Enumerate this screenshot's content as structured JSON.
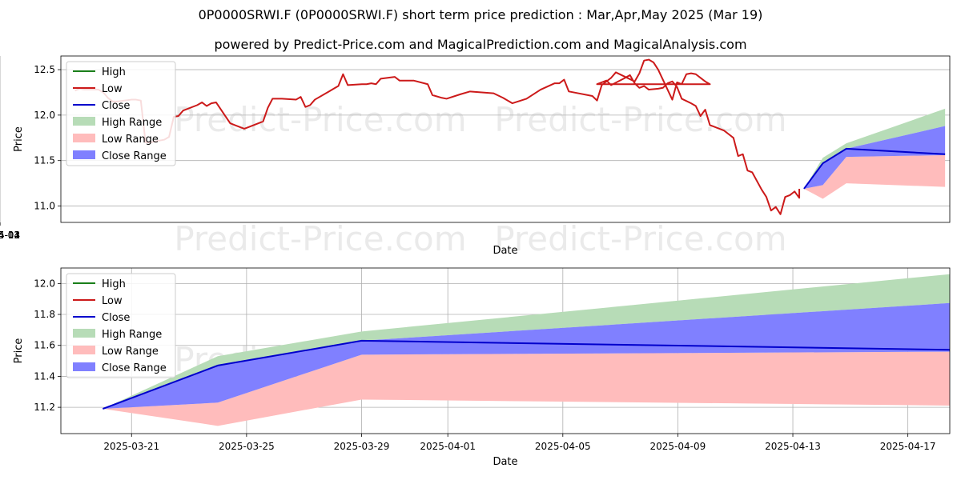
{
  "title": "0P0000SRWI.F (0P0000SRWI.F) short term price prediction : Mar,Apr,May 2025 (Mar 19)",
  "subtitle": "powered by Predict-Price.com and MagicalPrediction.com and MagicalAnalysis.com",
  "watermark": "Predict-Price.com",
  "colors": {
    "high": "#1a7f1a",
    "low": "#cc1a1a",
    "close": "#0000cc",
    "high_range": "#b7dcb7",
    "low_range": "#ffbcbc",
    "close_range": "#8080ff"
  },
  "chart_data": [
    {
      "type": "line",
      "xlabel": "Date",
      "ylabel": "Price",
      "ylim": [
        10.82,
        12.65
      ],
      "xlim": [
        "2024-10-13",
        "2025-04-20"
      ],
      "y_ticks": [
        "11.0",
        "11.5",
        "12.0",
        "12.5"
      ],
      "x_ticks": [
        "2024-11",
        "2024-12",
        "2025-01",
        "2025-02",
        "2025-03",
        "2025-04"
      ],
      "legend": [
        "High",
        "Low",
        "Close",
        "High Range",
        "Low Range",
        "Close Range"
      ],
      "legend_position": "top-left",
      "grid": true,
      "history": {
        "name": "Low",
        "points": [
          [
            "2024-10-16",
            12.27
          ],
          [
            "2024-10-17",
            12.29
          ],
          [
            "2024-10-18",
            12.28
          ],
          [
            "2024-10-21",
            12.28
          ],
          [
            "2024-10-22",
            12.25
          ],
          [
            "2024-10-23",
            12.19
          ],
          [
            "2024-10-24",
            12.15
          ],
          [
            "2024-10-25",
            12.15
          ],
          [
            "2024-10-28",
            12.17
          ],
          [
            "2024-10-29",
            12.17
          ],
          [
            "2024-10-30",
            12.16
          ],
          [
            "2024-10-31",
            11.7
          ],
          [
            "2024-11-01",
            11.7
          ],
          [
            "2024-11-04",
            11.73
          ],
          [
            "2024-11-05",
            11.76
          ],
          [
            "2024-11-06",
            11.98
          ],
          [
            "2024-11-07",
            11.99
          ],
          [
            "2024-11-08",
            12.05
          ],
          [
            "2024-11-11",
            12.11
          ],
          [
            "2024-11-12",
            12.14
          ],
          [
            "2024-11-13",
            12.1
          ],
          [
            "2024-11-14",
            12.13
          ],
          [
            "2024-11-15",
            12.14
          ],
          [
            "2024-11-18",
            11.91
          ],
          [
            "2024-11-19",
            11.89
          ],
          [
            "2024-11-20",
            11.87
          ],
          [
            "2024-11-21",
            11.85
          ],
          [
            "2024-11-22",
            11.87
          ],
          [
            "2024-11-25",
            11.93
          ],
          [
            "2024-11-26",
            12.08
          ],
          [
            "2024-11-27",
            12.18
          ],
          [
            "2024-11-28",
            12.18
          ],
          [
            "2024-11-29",
            12.18
          ],
          [
            "2024-12-02",
            12.17
          ],
          [
            "2024-12-03",
            12.2
          ],
          [
            "2024-12-04",
            12.09
          ],
          [
            "2024-12-05",
            12.11
          ],
          [
            "2024-12-06",
            12.17
          ],
          [
            "2024-12-09",
            12.26
          ],
          [
            "2024-12-10",
            12.29
          ],
          [
            "2024-12-11",
            12.32
          ],
          [
            "2024-12-12",
            12.45
          ],
          [
            "2024-12-13",
            12.33
          ],
          [
            "2024-12-16",
            12.34
          ],
          [
            "2024-12-17",
            12.34
          ],
          [
            "2024-12-18",
            12.35
          ],
          [
            "2024-12-19",
            12.34
          ],
          [
            "2024-12-20",
            12.4
          ],
          [
            "2024-12-23",
            12.42
          ],
          [
            "2024-12-24",
            12.38
          ],
          [
            "2024-12-27",
            12.38
          ],
          [
            "2024-12-30",
            12.34
          ],
          [
            "2024-12-31",
            12.22
          ],
          [
            "2025-01-02",
            12.19
          ],
          [
            "2025-01-03",
            12.18
          ],
          [
            "2025-01-06",
            12.23
          ],
          [
            "2025-01-08",
            12.26
          ],
          [
            "2025-01-13",
            12.24
          ],
          [
            "2025-01-15",
            12.19
          ],
          [
            "2025-01-17",
            12.13
          ],
          [
            "2025-01-20",
            12.18
          ],
          [
            "2025-01-23",
            12.28
          ],
          [
            "2025-01-26",
            12.35
          ],
          [
            "2025-01-27",
            12.35
          ],
          [
            "2025-01-28",
            12.39
          ],
          [
            "2025-01-29",
            12.26
          ],
          [
            "2025-02-03",
            12.21
          ],
          [
            "2025-02-04",
            12.16
          ],
          [
            "2025-02-05",
            12.33
          ],
          [
            "2025-02-07",
            12.41
          ],
          [
            "2025-02-08",
            12.47
          ],
          [
            "2025-02-12",
            12.37
          ],
          [
            "2025-02-13",
            12.46
          ],
          [
            "2025-02-14",
            12.6
          ],
          [
            "2025-02-15",
            12.61
          ],
          [
            "2025-02-16",
            12.58
          ],
          [
            "2025-02-17",
            12.5
          ],
          [
            "2025-02-18",
            12.39
          ],
          [
            "2025-02-19",
            12.28
          ],
          [
            "2025-02-20",
            12.17
          ],
          [
            "2025-02-21",
            12.36
          ],
          [
            "2025-02-22",
            12.34
          ],
          [
            "2025-02-23",
            12.45
          ],
          [
            "2025-02-24",
            12.46
          ],
          [
            "2025-02-25",
            12.45
          ],
          [
            "2025-02-26",
            12.41
          ],
          [
            "2025-02-27",
            12.37
          ],
          [
            "2025-02-28",
            12.34
          ],
          [
            "2025-02-04",
            12.34
          ],
          [
            "2025-02-05",
            12.36
          ],
          [
            "2025-02-06",
            12.38
          ],
          [
            "2025-02-07",
            12.33
          ],
          [
            "2025-02-10",
            12.41
          ],
          [
            "2025-02-11",
            12.44
          ],
          [
            "2025-02-12",
            12.35
          ],
          [
            "2025-02-13",
            12.3
          ],
          [
            "2025-02-14",
            12.32
          ],
          [
            "2025-02-15",
            12.28
          ],
          [
            "2025-02-17",
            12.29
          ],
          [
            "2025-02-18",
            12.3
          ],
          [
            "2025-02-19",
            12.35
          ],
          [
            "2025-02-20",
            12.37
          ],
          [
            "2025-02-21",
            12.31
          ],
          [
            "2025-02-22",
            12.18
          ],
          [
            "2025-02-24",
            12.13
          ],
          [
            "2025-02-25",
            12.1
          ],
          [
            "2025-02-26",
            11.99
          ],
          [
            "2025-02-27",
            12.06
          ],
          [
            "2025-02-28",
            11.89
          ],
          [
            "2025-03-03",
            11.83
          ],
          [
            "2025-03-04",
            11.79
          ],
          [
            "2025-03-05",
            11.75
          ],
          [
            "2025-03-06",
            11.55
          ],
          [
            "2025-03-07",
            11.57
          ],
          [
            "2025-03-08",
            11.39
          ],
          [
            "2025-03-09",
            11.37
          ],
          [
            "2025-03-11",
            11.18
          ],
          [
            "2025-03-12",
            11.1
          ],
          [
            "2025-03-13",
            10.95
          ],
          [
            "2025-03-14",
            10.99
          ],
          [
            "2025-03-15",
            10.91
          ],
          [
            "2025-03-16",
            11.1
          ],
          [
            "2025-03-17",
            11.12
          ],
          [
            "2025-03-18",
            11.16
          ],
          [
            "2025-03-18",
            11.16
          ],
          [
            "2025-03-19",
            11.09
          ],
          [
            "2025-03-19",
            11.19
          ]
        ]
      },
      "forecast": {
        "dates": [
          "2025-03-20",
          "2025-03-24",
          "2025-03-29",
          "2025-04-19"
        ],
        "close": [
          11.19,
          11.47,
          11.63,
          11.57
        ],
        "high_range_upper": [
          11.19,
          11.53,
          11.69,
          12.07
        ],
        "close_range_upper": [
          11.19,
          11.47,
          11.63,
          11.88
        ],
        "close_range_lower": [
          11.19,
          11.23,
          11.54,
          11.56
        ],
        "low_range_lower": [
          11.19,
          11.08,
          11.25,
          11.21
        ]
      }
    },
    {
      "type": "area",
      "xlabel": "Date",
      "ylabel": "Price",
      "ylim": [
        11.03,
        12.1
      ],
      "xlim": [
        "2025-03-18 13:00",
        "2025-04-18 11:00"
      ],
      "y_ticks": [
        "11.2",
        "11.4",
        "11.6",
        "11.8",
        "12.0"
      ],
      "x_ticks": [
        "2025-03-21",
        "2025-03-25",
        "2025-03-29",
        "2025-04-01",
        "2025-04-05",
        "2025-04-09",
        "2025-04-13",
        "2025-04-17"
      ],
      "legend": [
        "High",
        "Low",
        "Close",
        "High Range",
        "Low Range",
        "Close Range"
      ],
      "legend_position": "top-left",
      "grid": true,
      "dates": [
        "2025-03-20",
        "2025-03-24",
        "2025-03-29",
        "2025-04-19"
      ],
      "close": [
        11.19,
        11.47,
        11.63,
        11.57
      ],
      "high_range_upper": [
        11.19,
        11.53,
        11.69,
        12.07
      ],
      "close_range_upper": [
        11.19,
        11.47,
        11.63,
        11.88
      ],
      "close_range_lower": [
        11.19,
        11.23,
        11.54,
        11.56
      ],
      "low_range_upper": [
        11.19,
        11.23,
        11.54,
        11.56
      ],
      "low_range_lower": [
        11.19,
        11.08,
        11.25,
        11.21
      ]
    }
  ]
}
